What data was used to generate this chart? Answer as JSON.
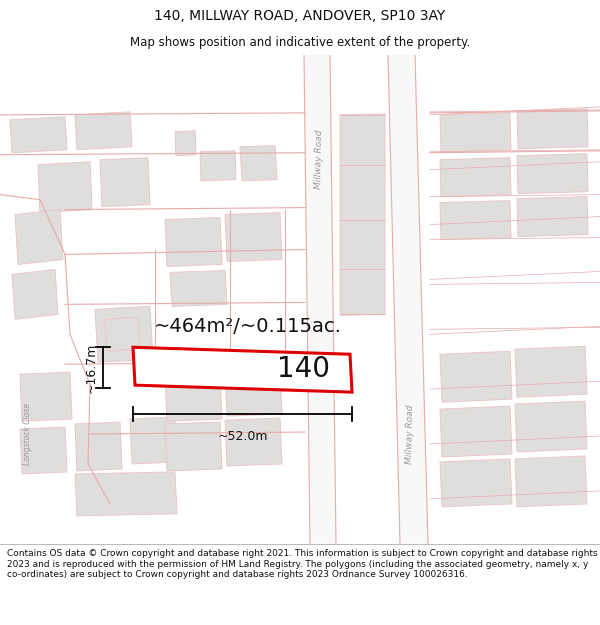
{
  "title": "140, MILLWAY ROAD, ANDOVER, SP10 3AY",
  "subtitle": "Map shows position and indicative extent of the property.",
  "footer": "Contains OS data © Crown copyright and database right 2021. This information is subject to Crown copyright and database rights 2023 and is reproduced with the permission of HM Land Registry. The polygons (including the associated geometry, namely x, y co-ordinates) are subject to Crown copyright and database rights 2023 Ordnance Survey 100026316.",
  "map_bg": "#ffffff",
  "building_fill": "#e0dedd",
  "building_edge": "#e8c8c8",
  "road_line_color": "#e8aaaa",
  "highlight_color": "#dd0000",
  "highlight_fill": "#ffffff",
  "text_color": "#111111",
  "dim_color": "#000000",
  "road_label_color": "#999999",
  "area_label": "~464m²/~0.115ac.",
  "width_label": "~52.0m",
  "height_label": "~16.7m",
  "property_number": "140",
  "title_fontsize": 10,
  "subtitle_fontsize": 8.5,
  "footer_fontsize": 6.5,
  "area_fontsize": 14,
  "prop_num_fontsize": 20,
  "dim_fontsize": 9,
  "road_label_fontsize": 6.5
}
